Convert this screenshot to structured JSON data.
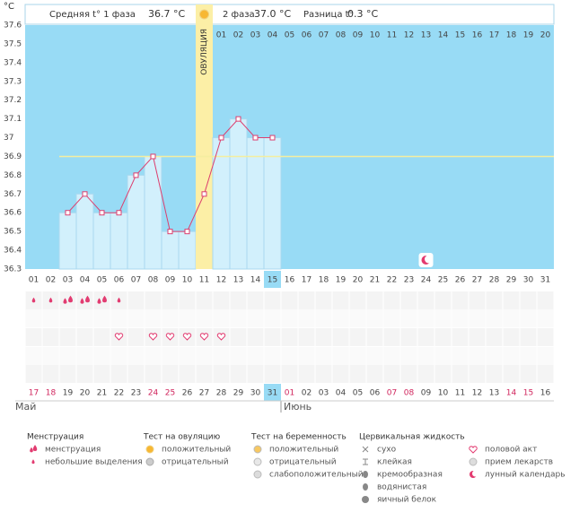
{
  "header": {
    "phase1_label": "Средняя t° 1 фаза",
    "phase1_value": "36.7 °C",
    "phase2_label": "2 фаза",
    "phase2_value": "37.0 °C",
    "diff_label": "Разница t°",
    "diff_value": "0.3 °C"
  },
  "chart_data": {
    "type": "line",
    "y_label": "°C",
    "categories": [
      "01",
      "02",
      "03",
      "04",
      "05",
      "06",
      "07",
      "08",
      "09",
      "10",
      "11",
      "12",
      "13",
      "14",
      "15",
      "16",
      "17",
      "18",
      "19",
      "20",
      "21",
      "22",
      "23",
      "24",
      "25",
      "26",
      "27",
      "28",
      "29",
      "30",
      "31"
    ],
    "values": [
      null,
      null,
      36.6,
      36.7,
      36.6,
      36.6,
      36.8,
      36.9,
      36.5,
      36.5,
      36.7,
      37.0,
      37.1,
      37.0,
      37.0,
      null,
      null,
      null,
      null,
      null,
      null,
      null,
      null,
      null,
      null,
      null,
      null,
      null,
      null,
      null,
      null
    ],
    "color": "#dc3f6f",
    "bar_color": "#d2f0fc",
    "background": "#98dbf5",
    "ylim": [
      36.3,
      37.6
    ],
    "yticks": [
      36.3,
      36.4,
      36.5,
      36.6,
      36.7,
      36.8,
      36.9,
      37,
      37.1,
      37.2,
      37.3,
      37.4,
      37.5,
      37.6
    ],
    "coverline": 36.9,
    "ovulation": {
      "label": "ОВУЛЯЦИЯ",
      "category": "11"
    },
    "phase2_start": "12",
    "phase2_days": [
      "01",
      "02",
      "03",
      "04",
      "05",
      "06",
      "07",
      "08",
      "09",
      "10",
      "11",
      "12",
      "13",
      "14",
      "15",
      "16",
      "17",
      "18",
      "19",
      "20"
    ],
    "today": "15",
    "moon_day": "24",
    "spotting_days": [
      "01",
      "02",
      "06"
    ],
    "menstruation_days": [
      "03",
      "04",
      "05"
    ],
    "intercourse_days": [
      "06",
      "08",
      "09",
      "10",
      "11",
      "12"
    ],
    "calendar": {
      "dates": [
        "17",
        "18",
        "19",
        "20",
        "21",
        "22",
        "23",
        "24",
        "25",
        "26",
        "27",
        "28",
        "29",
        "30",
        "31",
        "01",
        "02",
        "03",
        "04",
        "05",
        "06",
        "07",
        "08",
        "09",
        "10",
        "11",
        "12",
        "13",
        "14",
        "15",
        "16"
      ],
      "weekend": [
        "17",
        "18",
        "24",
        "25",
        "01",
        "07",
        "08",
        "14",
        "15"
      ],
      "months": [
        "Май",
        "Июнь"
      ]
    }
  },
  "legend": [
    {
      "title": "Менструация",
      "items": [
        "менструация",
        "небольшие выделения"
      ]
    },
    {
      "title": "Тест на овуляцию",
      "items": [
        "положительный",
        "отрицательный"
      ]
    },
    {
      "title": "Тест на беременность",
      "items": [
        "положительный",
        "отрицательный",
        "слабоположительный"
      ]
    },
    {
      "title": "Цервикальная жидкость",
      "items": [
        "сухо",
        "клейкая",
        "кремообразная",
        "водянистая",
        "яичный белок"
      ]
    },
    {
      "items": [
        "половой акт",
        "прием лекарств",
        "лунный календарь"
      ]
    }
  ]
}
